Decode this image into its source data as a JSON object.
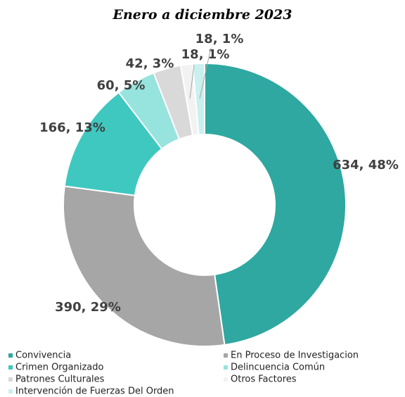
{
  "chart_data": {
    "type": "donut",
    "title": "Enero a diciembre 2023",
    "categories": [
      "Convivencia",
      "En Proceso de Investigacion",
      "Crimen Organizado",
      "Delincuencia Común",
      "Patrones Culturales",
      "Otros Factores",
      "Intervención de Fuerzas Del Orden"
    ],
    "values": [
      634,
      390,
      166,
      60,
      42,
      18,
      18
    ],
    "value_labels": [
      "634, 48%",
      "390, 29%",
      "166, 13%",
      "60, 5%",
      "42, 3%",
      "18, 1%",
      "18, 1%"
    ],
    "colors": [
      "#2ea8a0",
      "#a6a6a6",
      "#3fc8c0",
      "#97e3dd",
      "#d9d9d9",
      "#f2f2f2",
      "#c9f0ee"
    ],
    "legend": "bottom"
  }
}
